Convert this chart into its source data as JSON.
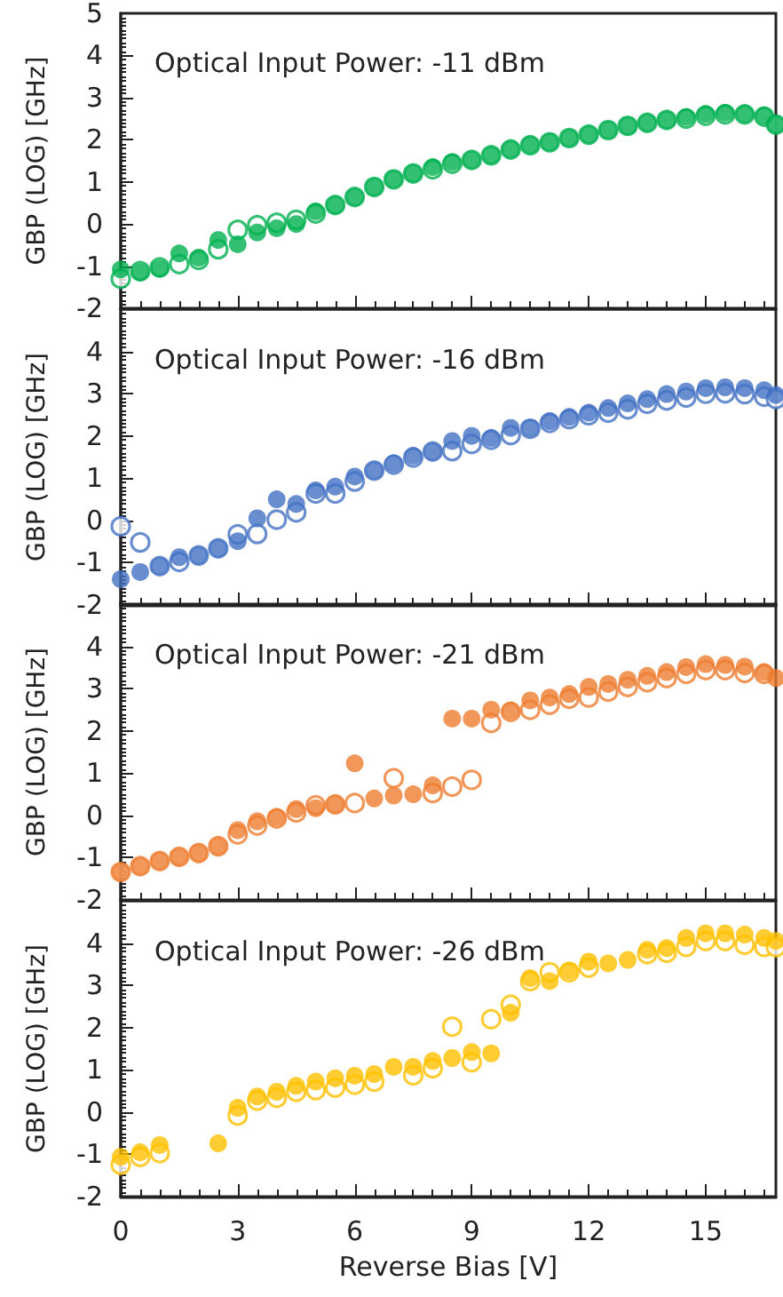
{
  "chart_data": [
    {
      "type": "scatter",
      "title": "Optical Input Power: -11 dBm",
      "ylabel": "GBP (LOG) [GHz]",
      "xlim": [
        0,
        16.8
      ],
      "xticks": [
        0,
        3,
        6,
        9,
        12,
        15
      ],
      "ylim": [
        -2,
        5
      ],
      "yticks": [
        -2,
        -1,
        0,
        1,
        2,
        3,
        4,
        5
      ],
      "tick_labels": "y",
      "marker": "circle",
      "x": [
        0,
        0.5,
        1,
        1.5,
        2,
        2.5,
        3,
        3.5,
        4,
        4.5,
        5,
        5.5,
        6,
        6.5,
        7,
        7.5,
        8,
        8.5,
        9,
        9.5,
        10,
        10.5,
        11,
        11.5,
        12,
        12.5,
        13,
        13.5,
        14,
        14.5,
        15,
        15.5,
        16,
        16.5,
        16.8
      ],
      "series": [
        {
          "color": "#00b050",
          "values": [
            -1.08,
            -1.15,
            -1.06,
            -0.7,
            -0.8,
            -0.38,
            -0.48,
            -0.2,
            -0.1,
            0.0,
            0.3,
            0.45,
            0.64,
            0.88,
            1.06,
            1.2,
            1.35,
            1.47,
            1.52,
            1.63,
            1.77,
            1.87,
            1.94,
            2.04,
            2.12,
            2.23,
            2.33,
            2.4,
            2.47,
            2.54,
            2.61,
            2.64,
            2.61,
            2.57,
            2.36
          ]
        },
        {
          "color": "#00b050",
          "values": [
            -1.3,
            -1.12,
            -1.03,
            -0.95,
            -0.85,
            -0.6,
            -0.14,
            -0.03,
            0.03,
            0.1,
            0.25,
            0.45,
            0.64,
            0.88,
            1.06,
            1.2,
            1.3,
            1.43,
            1.52,
            1.63,
            1.77,
            1.87,
            1.94,
            2.04,
            2.12,
            2.23,
            2.33,
            2.4,
            2.47,
            2.5,
            2.57,
            2.6,
            2.6,
            2.55,
            2.36
          ]
        }
      ]
    },
    {
      "type": "scatter",
      "title": "Optical Input Power: -16 dBm",
      "ylabel": "GBP (LOG) [GHz]",
      "xlim": [
        0,
        16.8
      ],
      "xticks": [
        0,
        3,
        6,
        9,
        12,
        15
      ],
      "ylim": [
        -2,
        5
      ],
      "yticks": [
        -2,
        -1,
        0,
        1,
        2,
        3,
        4
      ],
      "tick_labels": "y",
      "marker": "circle",
      "x": [
        0,
        0.5,
        1,
        1.5,
        2,
        2.5,
        3,
        3.5,
        4,
        4.5,
        5,
        5.5,
        6,
        6.5,
        7,
        7.5,
        8,
        8.5,
        9,
        9.5,
        10,
        10.5,
        11,
        11.5,
        12,
        12.5,
        13,
        13.5,
        14,
        14.5,
        15,
        15.5,
        16,
        16.5,
        16.8
      ],
      "series": [
        {
          "color": "#4472c4",
          "values": [
            -1.39,
            -1.22,
            -1.08,
            -0.87,
            -0.83,
            -0.66,
            -0.49,
            0.05,
            0.5,
            0.39,
            0.71,
            0.8,
            1.04,
            1.18,
            1.35,
            1.53,
            1.63,
            1.88,
            2.0,
            1.95,
            2.19,
            2.19,
            2.35,
            2.45,
            2.55,
            2.66,
            2.77,
            2.87,
            2.99,
            3.05,
            3.13,
            3.15,
            3.13,
            3.08,
            2.97
          ]
        },
        {
          "color": "#4472c4",
          "values": [
            -0.14,
            -0.52,
            -1.08,
            -0.98,
            -0.83,
            -0.66,
            -0.33,
            -0.32,
            0.02,
            0.19,
            0.64,
            0.64,
            0.92,
            1.18,
            1.32,
            1.49,
            1.63,
            1.64,
            1.81,
            1.91,
            2.02,
            2.17,
            2.31,
            2.4,
            2.49,
            2.55,
            2.63,
            2.76,
            2.84,
            2.91,
            3.0,
            3.01,
            2.99,
            2.93,
            2.87
          ]
        }
      ]
    },
    {
      "type": "scatter",
      "title": "Optical Input Power: -21 dBm",
      "ylabel": "GBP (LOG) [GHz]",
      "xlim": [
        0,
        16.8
      ],
      "xticks": [
        0,
        3,
        6,
        9,
        12,
        15
      ],
      "ylim": [
        -2,
        5
      ],
      "yticks": [
        -2,
        -1,
        0,
        1,
        2,
        3,
        4
      ],
      "tick_labels": "y",
      "marker": "circle",
      "x": [
        0,
        0.5,
        1,
        1.5,
        2,
        2.5,
        3,
        3.5,
        4,
        4.5,
        5,
        5.5,
        6,
        6.5,
        7,
        7.5,
        8,
        8.5,
        9,
        9.5,
        10,
        10.5,
        11,
        11.5,
        12,
        12.5,
        13,
        13.5,
        14,
        14.5,
        15,
        15.5,
        16,
        16.5,
        16.8
      ],
      "series": [
        {
          "color": "#ed7d31",
          "values": [
            -1.34,
            -1.2,
            -1.08,
            -0.98,
            -0.89,
            -0.73,
            -0.35,
            -0.14,
            -0.04,
            0.15,
            0.17,
            0.26,
            1.23,
            0.4,
            0.47,
            0.5,
            0.71,
            2.29,
            2.29,
            2.5,
            2.48,
            2.72,
            2.79,
            2.87,
            3.04,
            3.11,
            3.21,
            3.3,
            3.39,
            3.51,
            3.58,
            3.56,
            3.52,
            3.39,
            3.25
          ]
        },
        {
          "color": "#ed7d31",
          "values": [
            -1.34,
            -1.2,
            -1.08,
            -0.98,
            -0.89,
            -0.73,
            -0.45,
            -0.24,
            -0.07,
            0.07,
            0.24,
            0.26,
            0.29,
            null,
            0.88,
            null,
            0.53,
            0.68,
            0.84,
            2.19,
            2.45,
            2.5,
            2.62,
            2.76,
            2.79,
            2.93,
            3.04,
            3.15,
            3.25,
            3.35,
            3.44,
            3.44,
            3.37,
            3.35,
            null
          ]
        }
      ]
    },
    {
      "type": "scatter",
      "title": "Optical Input Power: -26 dBm",
      "xlabel": "Reverse Bias [V]",
      "ylabel": "GBP (LOG) [GHz]",
      "xlim": [
        0,
        16.8
      ],
      "xticks": [
        0,
        3,
        6,
        9,
        12,
        15
      ],
      "ylim": [
        -2,
        5
      ],
      "yticks": [
        -2,
        -1,
        0,
        1,
        2,
        3,
        4
      ],
      "marker": "circle",
      "x": [
        0,
        0.5,
        1,
        1.5,
        2,
        2.5,
        3,
        3.5,
        4,
        4.5,
        5,
        5.5,
        6,
        6.5,
        7,
        7.5,
        8,
        8.5,
        9,
        9.5,
        10,
        10.5,
        11,
        11.5,
        12,
        12.5,
        13,
        13.5,
        14,
        14.5,
        15,
        15.5,
        16,
        16.5,
        16.8
      ],
      "series": [
        {
          "color": "#ffc000",
          "values": [
            -1.06,
            -0.95,
            -0.78,
            null,
            null,
            -0.74,
            0.1,
            0.37,
            0.48,
            0.62,
            0.72,
            0.8,
            0.86,
            0.9,
            1.07,
            1.07,
            1.21,
            1.28,
            1.42,
            1.39,
            2.35,
            3.17,
            3.1,
            3.35,
            3.56,
            3.52,
            3.6,
            3.84,
            3.88,
            4.12,
            4.23,
            4.23,
            4.2,
            4.12,
            4.05
          ]
        },
        {
          "color": "#ffc000",
          "values": [
            -1.25,
            -1.06,
            -0.97,
            null,
            null,
            null,
            -0.08,
            0.27,
            0.34,
            0.48,
            0.52,
            0.58,
            0.65,
            0.72,
            null,
            0.87,
            1.04,
            2.02,
            1.18,
            2.2,
            2.54,
            3.1,
            3.31,
            3.31,
            3.42,
            null,
            null,
            3.74,
            3.77,
            3.91,
            4.05,
            4.05,
            3.96,
            3.91,
            3.9
          ]
        }
      ]
    }
  ]
}
